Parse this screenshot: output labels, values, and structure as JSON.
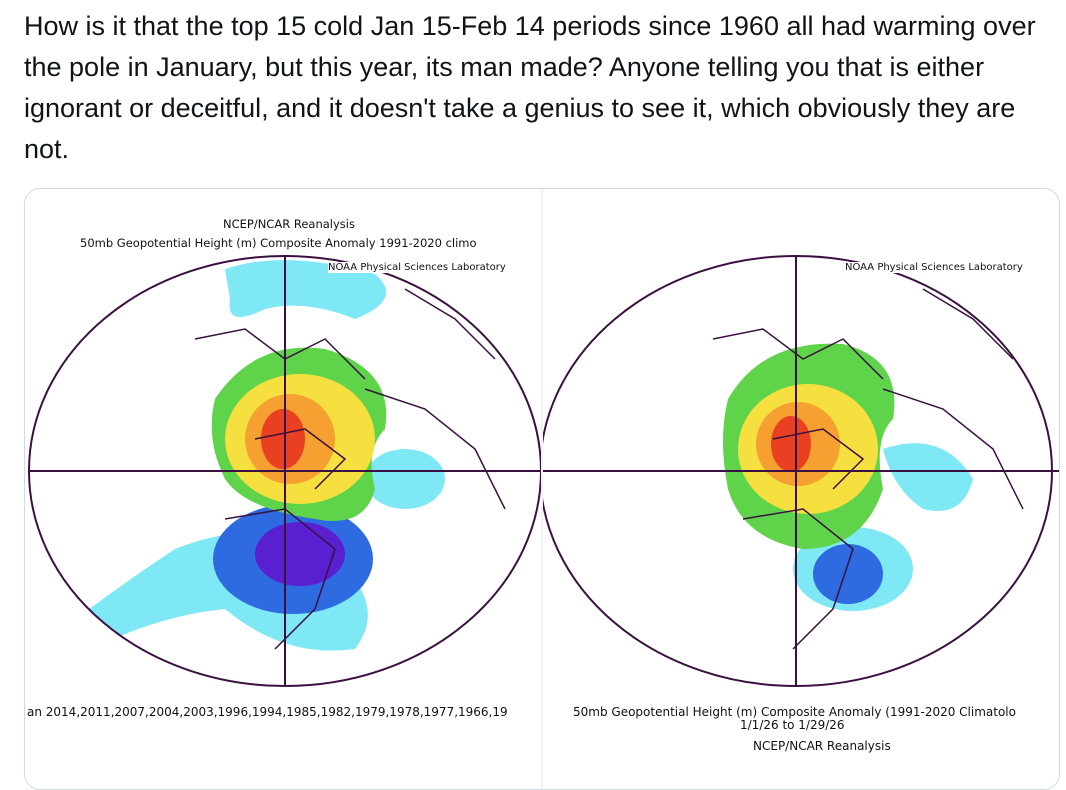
{
  "tweet": {
    "text": "How is it that the top 15 cold Jan 15-Feb 14 periods since 1960  all had warming over the pole in January, but  this year, its man made? Anyone telling you that is either ignorant or deceitful, and it doesn't take a genius to see it, which obviously they are not."
  },
  "left_map": {
    "title_line1": "NCEP/NCAR Reanalysis",
    "title_line2": "50mb Geopotential Height (m) Composite Anomaly 1991-2020 climo",
    "credit": "NOAA Physical Sciences Laboratory",
    "footer": "an 2014,2011,2007,2004,2003,1996,1994,1985,1982,1979,1978,1977,1966,19"
  },
  "right_map": {
    "credit": "NOAA Physical Sciences Laboratory",
    "footer_line1": "50mb Geopotential Height (m) Composite Anomaly (1991-2020 Climatolo",
    "footer_line2": "1/1/26  to 1/29/26",
    "footer_line3": "NCEP/NCAR Reanalysis"
  },
  "colors": {
    "text": "#0f1419",
    "border": "#cfd9de",
    "map_outline": "#3a1040",
    "cyan": "#7fe8f5",
    "blue": "#2e6be0",
    "purple": "#5a1fd0",
    "green": "#5fd44a",
    "yellow": "#f5e040",
    "orange": "#f5a030",
    "red": "#e84020"
  }
}
